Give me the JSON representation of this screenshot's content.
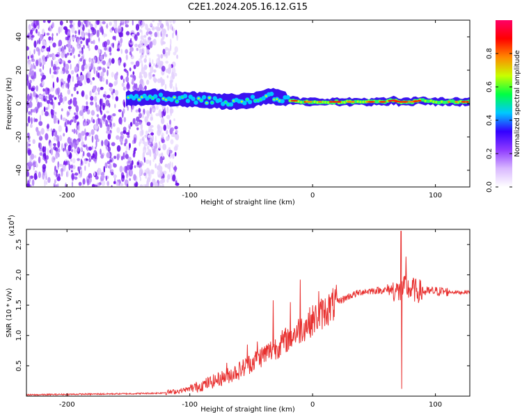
{
  "title": "C2E1.2024.205.16.12.G15",
  "chart_data": [
    {
      "type": "heatmap",
      "xlabel": "Height of straight line (km)",
      "ylabel": "Frequency (Hz)",
      "xlim": [
        -233,
        128
      ],
      "ylim": [
        -50,
        50
      ],
      "xticks": [
        -200,
        -100,
        0,
        100
      ],
      "yticks": [
        -40,
        -20,
        0,
        20,
        40
      ],
      "colorbar": {
        "label": "Normalized spectral amplitude",
        "range": [
          0,
          1
        ],
        "ticks": [
          0.0,
          0.2,
          0.4,
          0.6,
          0.8
        ],
        "colormap": [
          "#ffffff",
          "#d9b8ff",
          "#8f3bff",
          "#3300ff",
          "#00c8ff",
          "#00ff44",
          "#c8ff00",
          "#ff8800",
          "#ff0000",
          "#ff0066"
        ]
      },
      "signal_track": {
        "height_km": [
          -150,
          -130,
          -110,
          -90,
          -70,
          -50,
          -35,
          -25,
          -10,
          0,
          20,
          40,
          60,
          65,
          70,
          80,
          90,
          100,
          110,
          128
        ],
        "frequency_hz": [
          3,
          4,
          3,
          2,
          1,
          2,
          5,
          3,
          1,
          1,
          1,
          1,
          1,
          2,
          1,
          1,
          2,
          1,
          1,
          1
        ]
      }
    },
    {
      "type": "line",
      "xlabel": "Height of straight line (km)",
      "ylabel": "SNR (10 * v/v)",
      "y_multiplier": "(x10",
      "y_multiplier_exp": "4",
      "y_multiplier_close": ")",
      "xlim": [
        -233,
        128
      ],
      "ylim": [
        0,
        2.75
      ],
      "xticks": [
        -200,
        -100,
        0,
        100
      ],
      "yticks": [
        0.5,
        1.0,
        1.5,
        2.0,
        2.5
      ],
      "ytick_labels": [
        "0.5",
        "1.0",
        "1.5",
        "2.0",
        "2.5"
      ],
      "color": "#e8302f",
      "series": [
        {
          "x": [
            -233,
            -200,
            -150,
            -125,
            -110,
            -100,
            -90,
            -80,
            -70,
            -60,
            -50,
            -40,
            -30,
            -20,
            -10,
            0,
            10,
            20,
            30,
            40,
            50,
            60,
            65,
            70,
            72,
            75,
            80,
            90,
            100,
            110,
            120,
            128
          ],
          "y": [
            0.02,
            0.03,
            0.04,
            0.05,
            0.08,
            0.12,
            0.18,
            0.25,
            0.33,
            0.42,
            0.55,
            0.68,
            0.8,
            0.95,
            1.1,
            1.25,
            1.4,
            1.55,
            1.65,
            1.72,
            1.74,
            1.75,
            1.76,
            1.72,
            1.7,
            1.8,
            1.75,
            1.72,
            1.73,
            1.72,
            1.71,
            1.72
          ]
        }
      ],
      "spikes": [
        {
          "x": -96,
          "y": 0.2
        },
        {
          "x": -70,
          "y": 0.55
        },
        {
          "x": -53,
          "y": 0.85
        },
        {
          "x": -45,
          "y": 0.9
        },
        {
          "x": -32,
          "y": 1.58
        },
        {
          "x": -18,
          "y": 1.55
        },
        {
          "x": -10,
          "y": 1.92
        },
        {
          "x": 5,
          "y": 1.73
        },
        {
          "x": 72,
          "y": 2.72
        },
        {
          "x": 72.5,
          "y": 0.12
        },
        {
          "x": 76,
          "y": 2.3
        },
        {
          "x": 82,
          "y": 1.95
        }
      ]
    }
  ]
}
